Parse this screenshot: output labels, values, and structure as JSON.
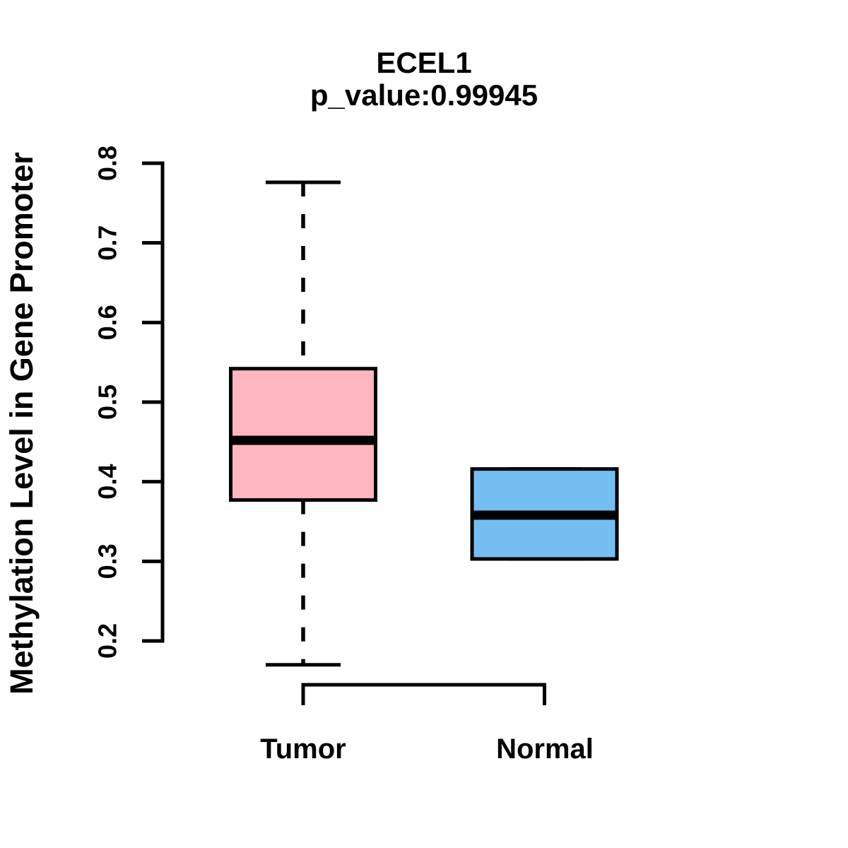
{
  "title": {
    "gene": "ECEL1",
    "subtitle": "p_value:0.99945"
  },
  "chart_data": {
    "type": "boxplot",
    "title": "ECEL1",
    "subtitle": "p_value:0.99945",
    "p_value": 0.99945,
    "ylabel": "Methylation Level in Gene Promoter",
    "categories": [
      "Tumor",
      "Normal"
    ],
    "y_tick_labels": [
      "0.2",
      "0.3",
      "0.4",
      "0.5",
      "0.6",
      "0.7",
      "0.8"
    ],
    "y_ticks": [
      0.2,
      0.3,
      0.4,
      0.5,
      0.6,
      0.7,
      0.8
    ],
    "y_axis_range": [
      0.2,
      0.8
    ],
    "grid": "off",
    "legend": "none",
    "series": [
      {
        "name": "Tumor",
        "fill_color": "#FFB6C1",
        "lower_whisker": 0.17,
        "q1": 0.377,
        "median": 0.452,
        "q3": 0.542,
        "upper_whisker": 0.776
      },
      {
        "name": "Normal",
        "fill_color": "#74BEF2",
        "lower_whisker": 0.303,
        "q1": 0.303,
        "median": 0.358,
        "q3": 0.416,
        "upper_whisker": 0.416
      }
    ],
    "line_color": "#000000",
    "background_color": "#FFFFFF"
  }
}
